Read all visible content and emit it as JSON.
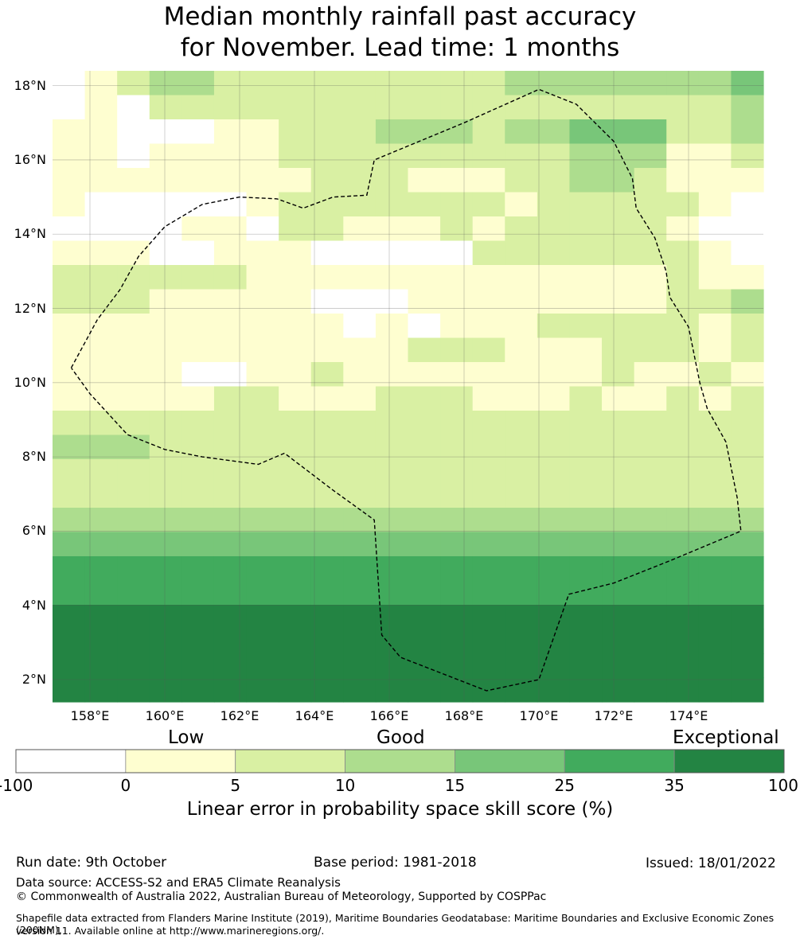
{
  "title_line1": "Median monthly rainfall past accuracy",
  "title_line2": "for November. Lead time: 1 months",
  "map": {
    "lon_min": 157.0,
    "lon_max": 176.0,
    "lat_min": 1.4,
    "lat_max": 18.4,
    "y_ticks": [
      "18°N",
      "16°N",
      "14°N",
      "12°N",
      "10°N",
      "8°N",
      "6°N",
      "4°N",
      "2°N"
    ],
    "y_tick_values": [
      18,
      16,
      14,
      12,
      10,
      8,
      6,
      4,
      2
    ],
    "x_ticks": [
      "158°E",
      "160°E",
      "162°E",
      "164°E",
      "166°E",
      "168°E",
      "170°E",
      "172°E",
      "174°E"
    ],
    "x_tick_values": [
      158,
      160,
      162,
      164,
      166,
      168,
      170,
      172,
      174
    ],
    "grid": true,
    "boundary_lonlat": [
      [
        157.5,
        10.4
      ],
      [
        158.2,
        11.7
      ],
      [
        158.8,
        12.5
      ],
      [
        159.3,
        13.4
      ],
      [
        160.0,
        14.2
      ],
      [
        161.0,
        14.8
      ],
      [
        162.0,
        15.0
      ],
      [
        163.0,
        14.95
      ],
      [
        163.7,
        14.7
      ],
      [
        164.5,
        15.0
      ],
      [
        165.4,
        15.05
      ],
      [
        165.6,
        16.0
      ],
      [
        168.0,
        17.0
      ],
      [
        170.0,
        17.9
      ],
      [
        171.0,
        17.5
      ],
      [
        172.0,
        16.5
      ],
      [
        172.5,
        15.5
      ],
      [
        172.6,
        14.7
      ],
      [
        173.1,
        13.9
      ],
      [
        173.4,
        13.0
      ],
      [
        173.5,
        12.3
      ],
      [
        174.0,
        11.5
      ],
      [
        174.3,
        10.0
      ],
      [
        174.5,
        9.3
      ],
      [
        175.0,
        8.4
      ],
      [
        175.3,
        6.9
      ],
      [
        175.4,
        6.0
      ],
      [
        173.5,
        5.2
      ],
      [
        172.0,
        4.6
      ],
      [
        170.8,
        4.3
      ],
      [
        170.0,
        2.0
      ],
      [
        168.6,
        1.7
      ],
      [
        166.3,
        2.6
      ],
      [
        165.8,
        3.2
      ],
      [
        165.6,
        6.3
      ],
      [
        164.5,
        7.1
      ],
      [
        163.2,
        8.1
      ],
      [
        162.5,
        7.8
      ],
      [
        161.0,
        8.0
      ],
      [
        160.0,
        8.2
      ],
      [
        159.0,
        8.6
      ],
      [
        158.0,
        9.7
      ],
      [
        157.5,
        10.4
      ]
    ],
    "color_classes": [
      "#ffffff",
      "#fefed0",
      "#d9f0a3",
      "#addd8e",
      "#78c679",
      "#41ab5d",
      "#238443"
    ],
    "cells": [
      "0123322222222233333334",
      "0102222222222222222223",
      "1100011222333233444223",
      "1101111222222222333112",
      "1111111122211122332111",
      "1000001222222212222210",
      "0000110221112122222100",
      "1110011100000222222210",
      "2222221111111111111211",
      "2221111100011111111223",
      "1111111110101112222212",
      "1111111111122211122212",
      "1111001121111111121121",
      "1111122111222111211212",
      "2222222222222222222222",
      "3332222222222222222222",
      "2222222222222222222222",
      "2222222222222222222222",
      "3333333333333333333333",
      "4444444444444444444444",
      "5555555555555555555555",
      "5555555555555555555555",
      "6666666666666666666666",
      "6666666666666666666666",
      "6666666666666666666666",
      "6666666666666666666666"
    ]
  },
  "colorbar": {
    "categories": [
      "Low",
      "Good",
      "Exceptional"
    ],
    "tick_labels": [
      "-100",
      "0",
      "5",
      "10",
      "15",
      "25",
      "35",
      "100"
    ],
    "colors": [
      "#ffffff",
      "#fefed0",
      "#d9f0a3",
      "#addd8e",
      "#78c679",
      "#41ab5d",
      "#238443"
    ],
    "label": "Linear error in probability space skill score (%)"
  },
  "footer": {
    "run_date": "Run date: 9th October",
    "base_period": "Base period: 1981-2018",
    "issued": "Issued: 18/01/2022",
    "data_source": "Data source: ACCESS-S2 and ERA5 Climate Reanalysis",
    "copyright": "© Commonwealth of Australia 2022, Australian Bureau of Meteorology, Supported by COSPPac",
    "shapefile_line1": "Shapefile data extracted from Flanders Marine Institute (2019), Maritime Boundaries Geodatabase: Maritime Boundaries and Exclusive Economic Zones (200NM),",
    "shapefile_line2": "version 11. Available online at http://www.marineregions.org/."
  }
}
